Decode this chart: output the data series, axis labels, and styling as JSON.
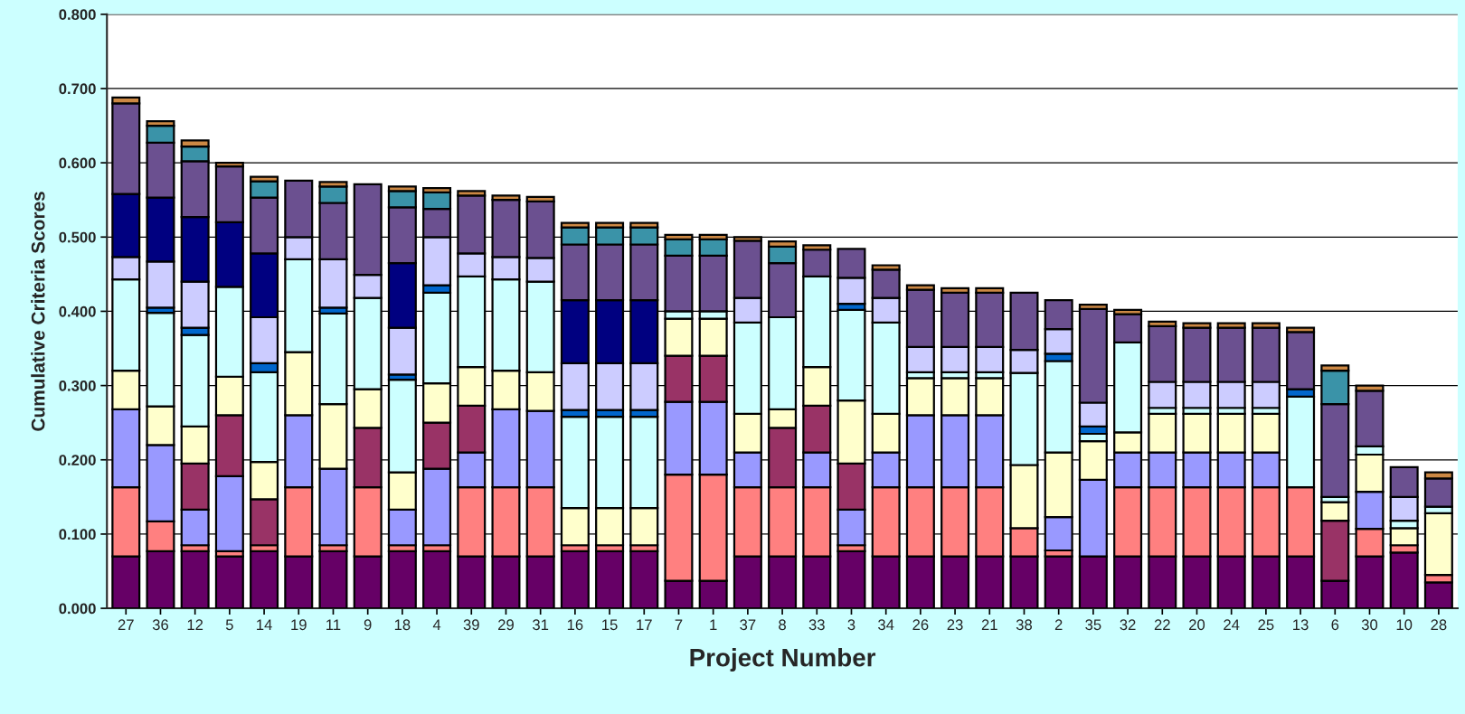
{
  "chart_data": {
    "type": "bar",
    "stacked": true,
    "xlabel": "Project Number",
    "ylabel": "Cumulative Criteria Scores",
    "categories": [
      "27",
      "36",
      "12",
      "5",
      "14",
      "19",
      "11",
      "9",
      "18",
      "4",
      "39",
      "29",
      "31",
      "16",
      "15",
      "17",
      "7",
      "1",
      "37",
      "8",
      "33",
      "3",
      "34",
      "26",
      "23",
      "21",
      "38",
      "2",
      "35",
      "32",
      "22",
      "20",
      "24",
      "25",
      "13",
      "6",
      "30",
      "10",
      "28"
    ],
    "ylim": [
      0,
      0.8
    ],
    "yticks": [
      {
        "value": 0,
        "label": "0.000"
      },
      {
        "value": 0.1,
        "label": "0.100"
      },
      {
        "value": 0.2,
        "label": "0.200"
      },
      {
        "value": 0.3,
        "label": "0.300"
      },
      {
        "value": 0.4,
        "label": "0.400"
      },
      {
        "value": 0.5,
        "label": "0.500"
      },
      {
        "value": 0.6,
        "label": "0.600"
      },
      {
        "value": 0.7,
        "label": "0.700"
      },
      {
        "value": 0.8,
        "label": "0.800"
      }
    ],
    "grid": "y",
    "series": [
      {
        "color": "#660066",
        "values": [
          0.07,
          0.077,
          0.077,
          0.07,
          0.077,
          0.07,
          0.077,
          0.07,
          0.077,
          0.077,
          0.07,
          0.07,
          0.07,
          0.077,
          0.077,
          0.077,
          0.037,
          0.037,
          0.07,
          0.07,
          0.07,
          0.077,
          0.07,
          0.07,
          0.07,
          0.07,
          0.07,
          0.07,
          0.07,
          0.07,
          0.07,
          0.07,
          0.07,
          0.07,
          0.07,
          0.037,
          0.07,
          0.075,
          0.035
        ]
      },
      {
        "color": "#ff8080",
        "values": [
          0.093,
          0.04,
          0.008,
          0.007,
          0.008,
          0.093,
          0.008,
          0.093,
          0.008,
          0.008,
          0.093,
          0.093,
          0.093,
          0.008,
          0.008,
          0.008,
          0.143,
          0.143,
          0.093,
          0.093,
          0.093,
          0.008,
          0.093,
          0.093,
          0.093,
          0.093,
          0.038,
          0.008,
          null,
          0.093,
          0.093,
          0.093,
          0.093,
          0.093,
          0.093,
          null,
          0.037,
          0.01,
          0.01
        ]
      },
      {
        "color": "#9999ff",
        "values": [
          0.105,
          0.103,
          0.048,
          0.101,
          null,
          0.097,
          0.103,
          null,
          0.048,
          0.103,
          0.047,
          0.105,
          0.103,
          null,
          null,
          null,
          0.098,
          0.098,
          0.047,
          null,
          0.047,
          0.048,
          0.047,
          0.097,
          0.097,
          0.097,
          null,
          0.045,
          0.103,
          0.047,
          0.047,
          0.047,
          0.047,
          0.047,
          null,
          null,
          0.05,
          null,
          null
        ]
      },
      {
        "color": "#993366",
        "values": [
          null,
          null,
          0.062,
          0.082,
          0.062,
          null,
          null,
          0.08,
          null,
          0.062,
          0.063,
          null,
          null,
          null,
          null,
          null,
          0.062,
          0.062,
          null,
          0.08,
          0.063,
          0.062,
          null,
          null,
          null,
          null,
          null,
          null,
          null,
          null,
          null,
          null,
          null,
          null,
          null,
          0.081,
          null,
          null,
          null
        ]
      },
      {
        "color": "#ffffcc",
        "values": [
          0.052,
          0.052,
          0.05,
          0.052,
          0.05,
          0.085,
          0.087,
          0.052,
          0.05,
          0.053,
          0.052,
          0.052,
          0.052,
          0.05,
          0.05,
          0.05,
          0.05,
          0.05,
          0.052,
          0.025,
          0.052,
          0.085,
          0.052,
          0.05,
          0.05,
          0.05,
          0.085,
          0.087,
          0.052,
          0.027,
          0.052,
          0.052,
          0.052,
          0.052,
          null,
          0.025,
          0.05,
          0.023,
          0.083
        ]
      },
      {
        "color": "#ccffff",
        "values": [
          0.123,
          0.126,
          0.123,
          0.121,
          0.121,
          0.125,
          0.122,
          0.123,
          0.125,
          0.122,
          0.122,
          0.123,
          0.122,
          0.123,
          0.123,
          0.123,
          0.01,
          0.01,
          0.123,
          0.124,
          0.122,
          0.122,
          0.123,
          0.008,
          0.008,
          0.008,
          0.124,
          0.123,
          0.01,
          0.121,
          0.008,
          0.008,
          0.008,
          0.008,
          0.122,
          0.007,
          0.011,
          0.01,
          0.009
        ]
      },
      {
        "color": "#0066cc",
        "values": [
          null,
          0.007,
          0.01,
          null,
          0.012,
          null,
          0.008,
          null,
          0.007,
          0.01,
          null,
          null,
          null,
          0.009,
          0.009,
          0.009,
          null,
          null,
          null,
          null,
          null,
          0.008,
          null,
          null,
          null,
          null,
          null,
          0.01,
          0.01,
          null,
          null,
          null,
          null,
          null,
          0.01,
          null,
          null,
          null,
          null
        ]
      },
      {
        "color": "#ccccff",
        "values": [
          0.03,
          0.062,
          0.062,
          null,
          0.062,
          0.03,
          0.065,
          0.031,
          0.063,
          0.065,
          0.031,
          0.03,
          0.032,
          0.063,
          0.063,
          0.063,
          null,
          null,
          0.033,
          null,
          null,
          0.035,
          0.033,
          0.034,
          0.034,
          0.034,
          0.031,
          0.033,
          0.032,
          null,
          0.035,
          0.035,
          0.035,
          0.035,
          null,
          null,
          null,
          0.032,
          null
        ]
      },
      {
        "color": "#000080",
        "values": [
          0.085,
          0.086,
          0.087,
          0.087,
          0.086,
          null,
          null,
          null,
          0.087,
          null,
          null,
          null,
          null,
          0.085,
          0.085,
          0.085,
          null,
          null,
          null,
          null,
          null,
          null,
          null,
          null,
          null,
          null,
          null,
          null,
          null,
          null,
          null,
          null,
          null,
          null,
          null,
          null,
          null,
          null,
          null
        ]
      },
      {
        "color": "#6b5090",
        "values": [
          0.122,
          0.074,
          0.075,
          0.075,
          0.075,
          0.076,
          0.076,
          0.122,
          0.075,
          0.038,
          0.078,
          0.077,
          0.076,
          0.075,
          0.075,
          0.075,
          0.075,
          0.075,
          0.077,
          0.073,
          0.036,
          0.039,
          0.038,
          0.077,
          0.073,
          0.073,
          0.077,
          0.039,
          0.126,
          0.038,
          0.075,
          0.073,
          0.073,
          0.073,
          0.077,
          0.125,
          0.075,
          0.04,
          0.038
        ]
      },
      {
        "color": "#3a93a8",
        "values": [
          null,
          0.023,
          0.02,
          null,
          0.022,
          null,
          0.022,
          null,
          0.022,
          0.022,
          null,
          null,
          null,
          0.023,
          0.023,
          0.023,
          0.022,
          0.022,
          null,
          0.022,
          null,
          null,
          null,
          null,
          null,
          null,
          null,
          null,
          null,
          null,
          null,
          null,
          null,
          null,
          null,
          0.045,
          null,
          null,
          null
        ]
      },
      {
        "color": "#cc8844",
        "values": [
          0.008,
          0.006,
          0.008,
          0.005,
          0.006,
          null,
          0.006,
          null,
          0.006,
          0.006,
          0.006,
          0.006,
          0.006,
          0.006,
          0.006,
          0.006,
          0.006,
          0.006,
          0.005,
          0.007,
          0.006,
          null,
          0.006,
          0.006,
          0.006,
          0.006,
          null,
          null,
          0.006,
          0.006,
          0.006,
          0.006,
          0.006,
          0.006,
          0.006,
          0.007,
          0.007,
          null,
          0.008
        ]
      }
    ]
  }
}
